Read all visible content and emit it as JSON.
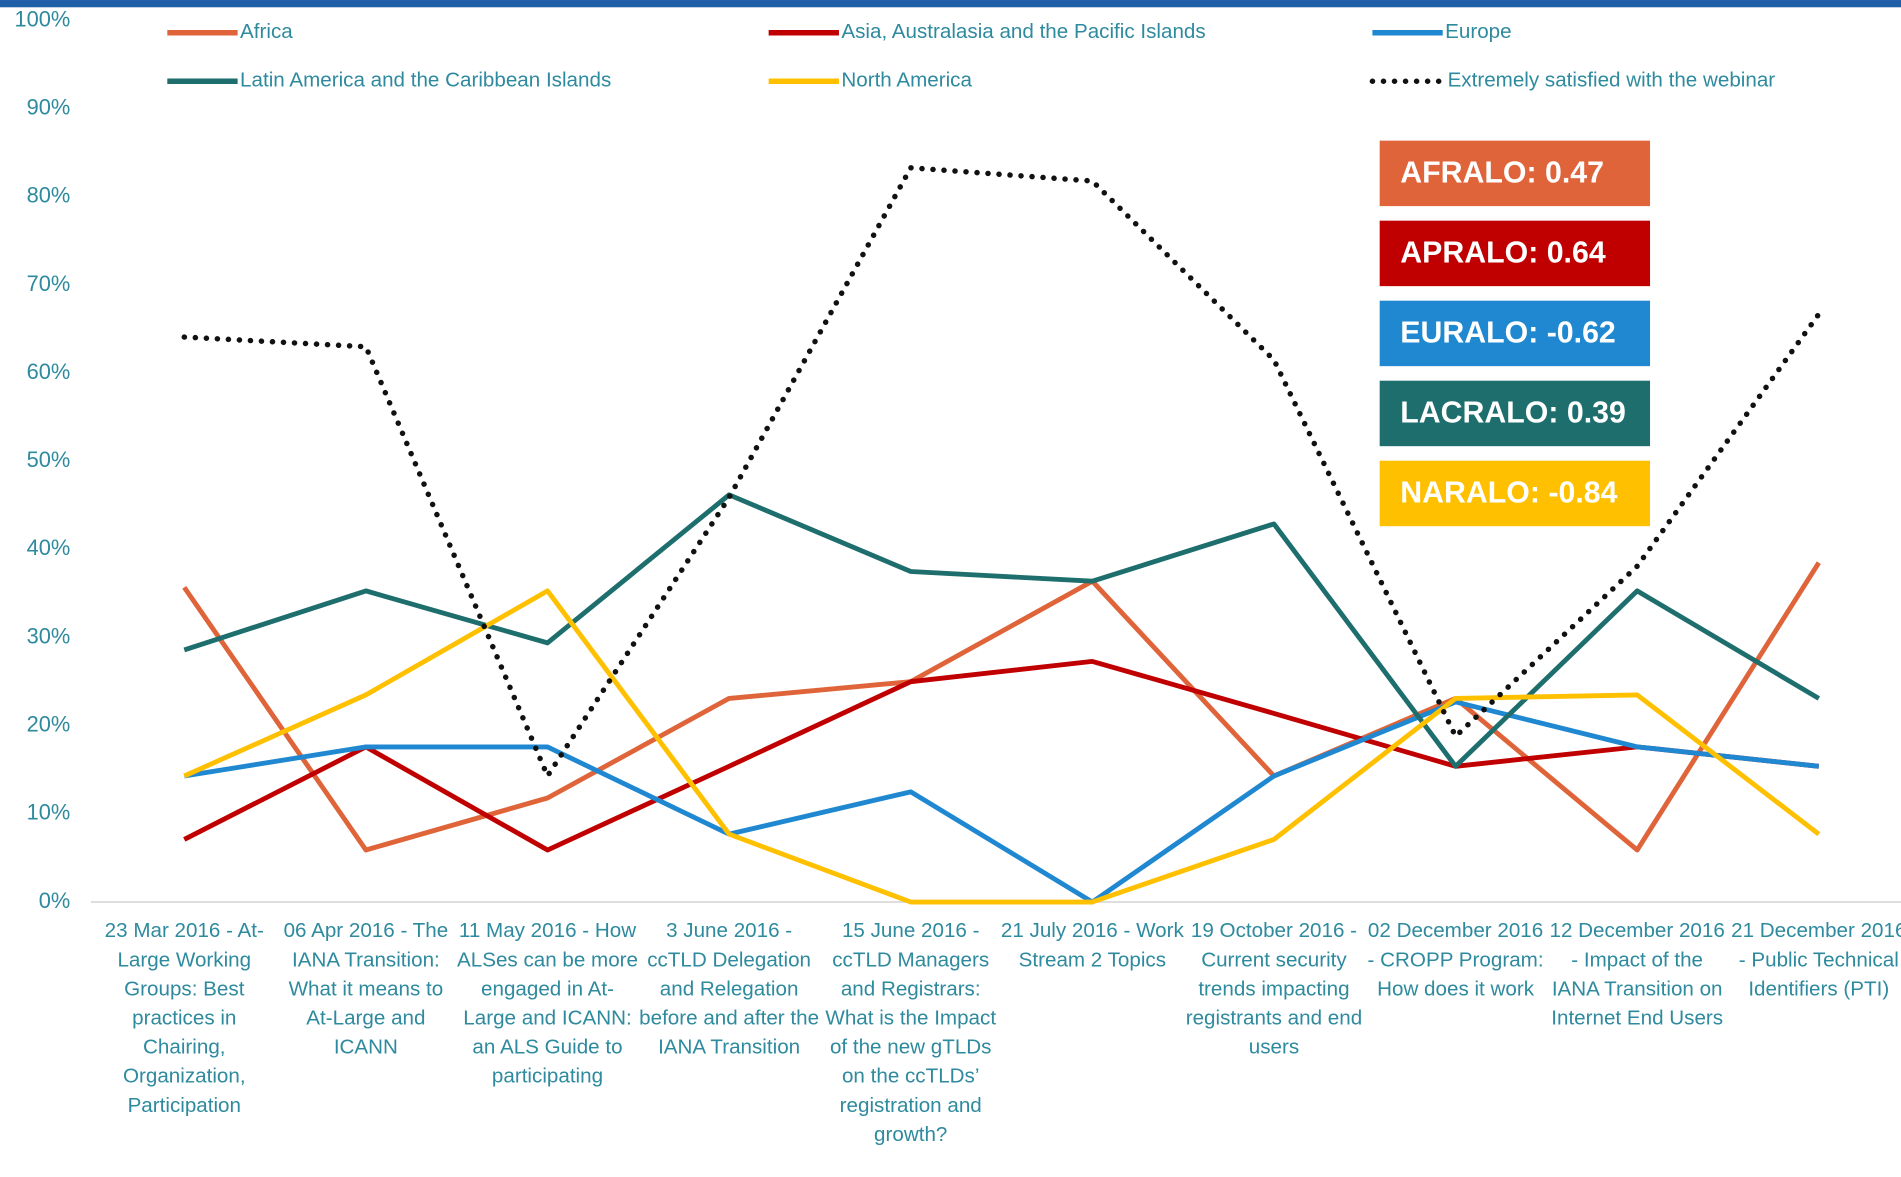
{
  "chart_data": {
    "type": "line",
    "categories": [
      "23 Mar 2016 - At-Large Working Groups: Best practices in Chairing, Organization, Participation",
      "06 Apr 2016 - The IANA Transition: What it means to At-Large and ICANN",
      "11 May 2016 - How ALSes can be more engaged in At-Large and ICANN: an ALS Guide to participating",
      "3 June 2016 - ccTLD Delegation and Relegation before and after the IANA Transition",
      "15 June 2016 - ccTLD Managers and Registrars: What is the Impact of the new gTLDs on the ccTLDs’ registration and growth?",
      "21 July 2016 - Work Stream 2 Topics",
      "19 October 2016 - Current security trends impacting registrants and end users",
      "02 December 2016 - CROPP Program: How does it work",
      "12 December 2016 - Impact of the IANA Transition on Internet End Users",
      "21 December 2016 - Public Technical Identifiers (PTI)"
    ],
    "series": [
      {
        "name": "Africa",
        "color": "#e0643a",
        "style": "solid",
        "values": [
          35.7,
          5.9,
          11.8,
          23.1,
          25.0,
          36.4,
          14.3,
          23.1,
          5.9,
          38.5
        ]
      },
      {
        "name": "Asia, Australasia and the Pacific Islands",
        "color": "#c00000",
        "style": "solid",
        "values": [
          7.1,
          17.6,
          5.9,
          15.4,
          25.0,
          27.3,
          21.4,
          15.4,
          17.6,
          15.4
        ]
      },
      {
        "name": "Europe",
        "color": "#1f88d0",
        "style": "solid",
        "values": [
          14.3,
          17.6,
          17.6,
          7.7,
          12.5,
          0,
          14.3,
          22.7,
          17.6,
          15.4
        ]
      },
      {
        "name": "Latin America and the Caribbean Islands",
        "color": "#1e6e6e",
        "style": "solid",
        "values": [
          28.6,
          35.3,
          29.4,
          46.2,
          37.5,
          36.4,
          42.9,
          15.4,
          35.3,
          23.1
        ]
      },
      {
        "name": "North America",
        "color": "#ffc000",
        "style": "solid",
        "values": [
          14.3,
          23.5,
          35.3,
          7.7,
          0,
          0,
          7.1,
          23.1,
          23.5,
          7.7
        ]
      },
      {
        "name": "Extremely satisfied with the webinar",
        "color": "#111111",
        "style": "dotted",
        "values": [
          64.1,
          63.0,
          14.3,
          45.9,
          83.3,
          81.8,
          61.5,
          18.8,
          38.1,
          66.7
        ]
      }
    ],
    "ylim": [
      0,
      100
    ],
    "yticks": [
      {
        "value": 0,
        "label": "0%"
      },
      {
        "value": 10,
        "label": "10%"
      },
      {
        "value": 20,
        "label": "20%"
      },
      {
        "value": 30,
        "label": "30%"
      },
      {
        "value": 40,
        "label": "40%"
      },
      {
        "value": 50,
        "label": "50%"
      },
      {
        "value": 60,
        "label": "60%"
      },
      {
        "value": 70,
        "label": "70%"
      },
      {
        "value": 80,
        "label": "80%"
      },
      {
        "value": 90,
        "label": "90%"
      },
      {
        "value": 100,
        "label": "100%"
      }
    ],
    "grid": false,
    "legend": "top",
    "annotations": [
      {
        "text": "AFRALO: 0.47",
        "color": "#e0643a"
      },
      {
        "text": "APRALO: 0.64",
        "color": "#c00000"
      },
      {
        "text": "EURALO: -0.62",
        "color": "#1f88d0"
      },
      {
        "text": "LACRALO: 0.39",
        "color": "#1e6e6e"
      },
      {
        "text": "NARALO: -0.84",
        "color": "#ffc000"
      }
    ]
  }
}
